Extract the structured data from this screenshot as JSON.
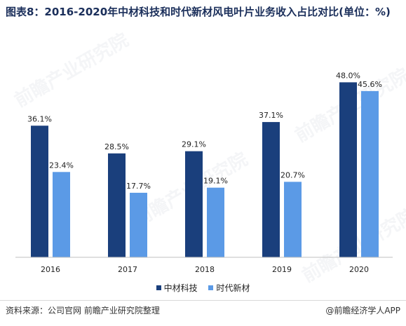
{
  "title": "图表8：2016-2020年中材科技和时代新材风电叶片业务收入占比对比(单位：%)",
  "source": "资料来源：公司官网 前瞻产业研究院整理",
  "credit": "@前瞻经济学人APP",
  "watermark": "前瞻产业研究院",
  "colors": {
    "series1": "#1a3f7c",
    "series2": "#5b9ae6"
  },
  "chart_data": {
    "type": "bar",
    "categories": [
      "2016",
      "2017",
      "2018",
      "2019",
      "2020"
    ],
    "series": [
      {
        "name": "中材科技",
        "values": [
          36.1,
          28.5,
          29.1,
          37.1,
          48.0
        ],
        "labels": [
          "36.1%",
          "28.5%",
          "29.1%",
          "37.1%",
          "48.0%"
        ]
      },
      {
        "name": "时代新材",
        "values": [
          23.4,
          17.7,
          19.1,
          20.7,
          45.6
        ],
        "labels": [
          "23.4%",
          "17.7%",
          "19.1%",
          "20.7%",
          "45.6%"
        ]
      }
    ],
    "ylim": [
      0,
      50
    ],
    "grid": false,
    "legend": "bottom"
  }
}
